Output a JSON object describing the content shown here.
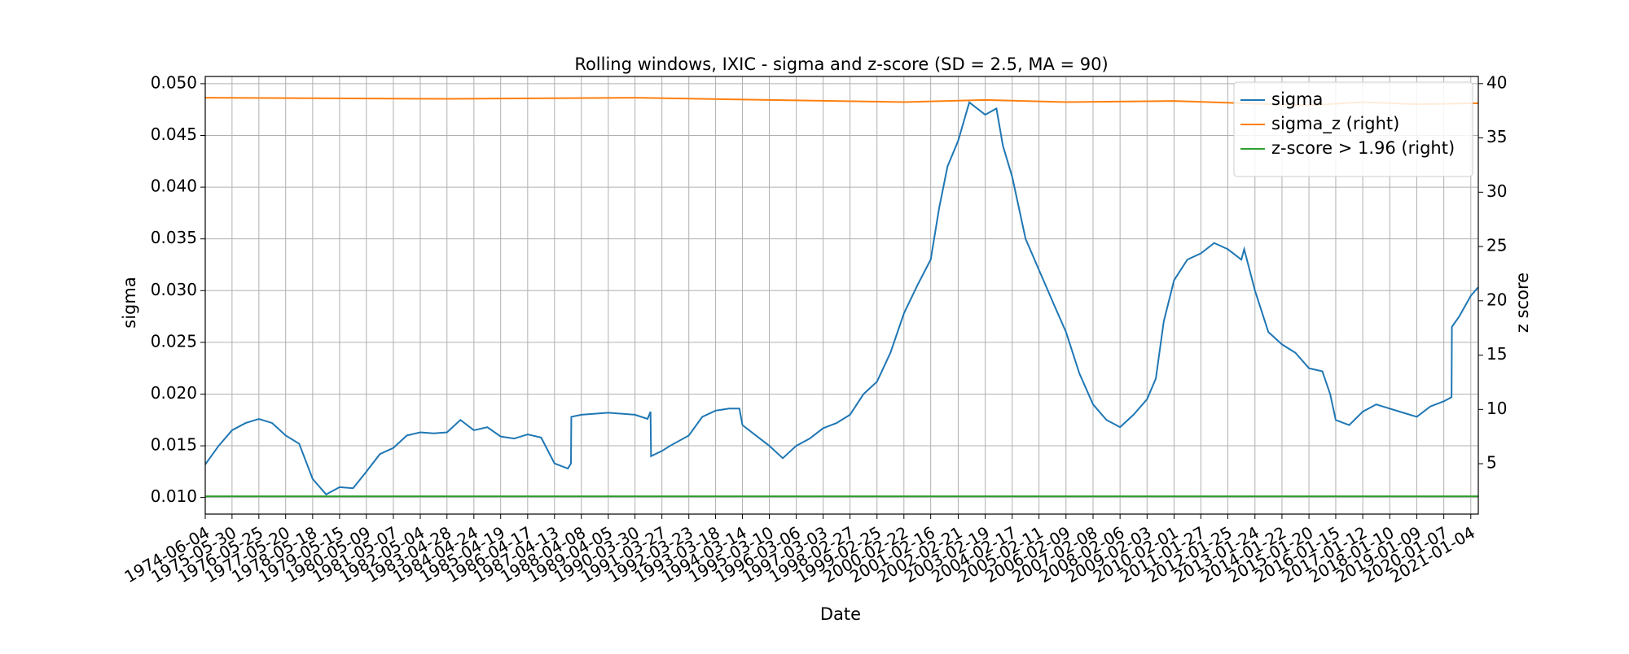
{
  "chart_data": {
    "type": "line",
    "title": "Rolling windows, IXIC - sigma and z-score (SD = 2.5, MA = 90)",
    "x_label": "Date",
    "y_label": "sigma",
    "y2_label": "z score",
    "grid": true,
    "legend": "upper right",
    "xlim": [
      "1974-06-04",
      "2021-04-15"
    ],
    "xticks": [
      "1974-06-04",
      "1975-05-30",
      "1976-05-25",
      "1977-05-20",
      "1978-05-18",
      "1979-05-15",
      "1980-05-09",
      "1981-05-07",
      "1982-05-04",
      "1983-04-28",
      "1984-04-24",
      "1985-04-19",
      "1986-04-17",
      "1987-04-13",
      "1988-04-08",
      "1989-04-05",
      "1990-03-30",
      "1991-03-27",
      "1992-03-23",
      "1993-03-18",
      "1994-03-14",
      "1995-03-10",
      "1996-03-06",
      "1997-03-03",
      "1998-02-27",
      "1999-02-25",
      "2000-02-22",
      "2001-02-16",
      "2002-02-21",
      "2003-02-19",
      "2004-02-17",
      "2005-02-11",
      "2006-02-09",
      "2007-02-08",
      "2008-02-06",
      "2009-02-03",
      "2010-02-01",
      "2011-01-27",
      "2012-01-25",
      "2013-01-24",
      "2014-01-22",
      "2015-01-20",
      "2016-01-15",
      "2017-01-12",
      "2018-01-10",
      "2019-01-09",
      "2020-01-07",
      "2021-01-04"
    ],
    "ylim": [
      0.0084,
      0.0507
    ],
    "yticks": [
      {
        "value": 0.01,
        "label": "0.010"
      },
      {
        "value": 0.015,
        "label": "0.015"
      },
      {
        "value": 0.02,
        "label": "0.020"
      },
      {
        "value": 0.025,
        "label": "0.025"
      },
      {
        "value": 0.03,
        "label": "0.030"
      },
      {
        "value": 0.035,
        "label": "0.035"
      },
      {
        "value": 0.04,
        "label": "0.040"
      },
      {
        "value": 0.045,
        "label": "0.045"
      },
      {
        "value": 0.05,
        "label": "0.050"
      }
    ],
    "y2lim": [
      0.36,
      40.66
    ],
    "y2ticks": [
      5,
      10,
      15,
      20,
      25,
      30,
      35,
      40
    ],
    "series": [
      {
        "name": "sigma",
        "color": "#1f77b4",
        "x": [
          "1974-06-04",
          "1974-12-01",
          "1975-05-30",
          "1975-11-28",
          "1976-05-25",
          "1976-11-20",
          "1977-05-20",
          "1977-11-18",
          "1978-05-18",
          "1978-11-15",
          "1979-05-15",
          "1979-11-12",
          "1980-05-09",
          "1980-11-07",
          "1981-05-07",
          "1981-11-05",
          "1982-05-04",
          "1982-11-01",
          "1983-04-28",
          "1983-10-26",
          "1984-04-24",
          "1984-10-22",
          "1985-04-19",
          "1985-10-18",
          "1986-04-17",
          "1986-10-15",
          "1987-04-13",
          "1987-10-10",
          "1987-11-20",
          "1987-11-25",
          "1988-04-08",
          "1989-04-05",
          "1990-03-30",
          "1990-09-15",
          "1990-10-25",
          "1990-11-01",
          "1991-03-27",
          "1991-07-15",
          "1992-03-23",
          "1992-09-20",
          "1993-03-18",
          "1993-09-15",
          "1994-02-01",
          "1994-03-14",
          "1994-09-10",
          "1995-03-10",
          "1995-09-07",
          "1996-03-06",
          "1996-09-03",
          "1997-03-03",
          "1997-08-30",
          "1998-02-27",
          "1998-08-28",
          "1999-02-25",
          "1999-08-25",
          "2000-02-22",
          "2000-08-20",
          "2001-02-16",
          "2001-06-10",
          "2001-09-30",
          "2002-02-21",
          "2002-07-20",
          "2003-02-19",
          "2003-07-20",
          "2003-10-15",
          "2004-02-17",
          "2004-08-15",
          "2005-02-11",
          "2005-08-10",
          "2006-02-09",
          "2006-08-08",
          "2007-02-08",
          "2007-08-07",
          "2008-02-06",
          "2008-08-05",
          "2009-02-03",
          "2009-06-01",
          "2009-09-15",
          "2010-02-01",
          "2010-07-30",
          "2011-01-27",
          "2011-07-26",
          "2012-01-25",
          "2012-07-25",
          "2012-09-01",
          "2013-01-24",
          "2013-07-23",
          "2014-01-22",
          "2014-07-21",
          "2015-01-20",
          "2015-07-19",
          "2015-11-01",
          "2016-01-15",
          "2016-07-14",
          "2017-01-12",
          "2017-07-12",
          "2018-01-10",
          "2018-07-10",
          "2019-01-09",
          "2019-07-09",
          "2020-01-07",
          "2020-04-20",
          "2020-04-25",
          "2020-08-01",
          "2021-01-04",
          "2021-04-10"
        ],
        "values": [
          0.0132,
          0.015,
          0.0165,
          0.0172,
          0.0176,
          0.0172,
          0.016,
          0.0152,
          0.0118,
          0.0103,
          0.011,
          0.0109,
          0.0125,
          0.0142,
          0.0148,
          0.016,
          0.0163,
          0.0162,
          0.0163,
          0.0175,
          0.0165,
          0.0168,
          0.0159,
          0.0157,
          0.0161,
          0.0158,
          0.0133,
          0.0128,
          0.0133,
          0.0178,
          0.018,
          0.0182,
          0.018,
          0.0176,
          0.0183,
          0.014,
          0.0145,
          0.015,
          0.016,
          0.0178,
          0.0184,
          0.0186,
          0.0186,
          0.017,
          0.016,
          0.015,
          0.0138,
          0.015,
          0.0157,
          0.0167,
          0.0172,
          0.018,
          0.02,
          0.0212,
          0.024,
          0.0278,
          0.0305,
          0.033,
          0.038,
          0.042,
          0.0445,
          0.0482,
          0.047,
          0.0476,
          0.044,
          0.041,
          0.035,
          0.032,
          0.029,
          0.026,
          0.022,
          0.019,
          0.0175,
          0.0168,
          0.018,
          0.0195,
          0.0215,
          0.027,
          0.031,
          0.033,
          0.0336,
          0.0346,
          0.034,
          0.033,
          0.034,
          0.03,
          0.026,
          0.0248,
          0.024,
          0.0225,
          0.0222,
          0.02,
          0.0175,
          0.017,
          0.0183,
          0.019,
          0.0186,
          0.0182,
          0.0178,
          0.0188,
          0.0193,
          0.0197,
          0.0265,
          0.0275,
          0.0295,
          0.0303
        ]
      },
      {
        "name": "sigma_z (right)",
        "color": "#ff7f0e",
        "axis": "y2",
        "x": [
          "1974-06-04",
          "1983-04-28",
          "1990-03-30",
          "1995-03-10",
          "2000-02-22",
          "2003-02-19",
          "2006-02-09",
          "2010-02-01",
          "2015-01-20",
          "2017-01-12",
          "2019-01-09",
          "2021-04-10"
        ],
        "values": [
          38.7,
          38.6,
          38.7,
          38.5,
          38.3,
          38.5,
          38.3,
          38.4,
          38.0,
          38.3,
          38.1,
          38.2
        ]
      },
      {
        "name": "z-score > 1.96 (right)",
        "color": "#2ca02c",
        "axis": "y2",
        "x": [
          "1974-06-04",
          "2021-04-10"
        ],
        "values": [
          2.0,
          2.0
        ]
      }
    ]
  }
}
